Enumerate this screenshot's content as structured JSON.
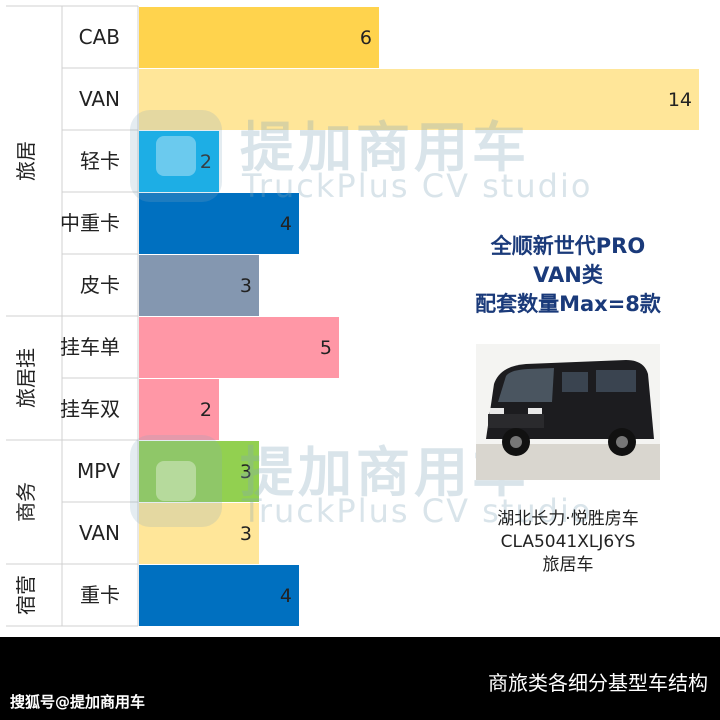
{
  "chart_data": {
    "type": "bar",
    "orientation": "horizontal",
    "groups": [
      {
        "name": "旅居",
        "categories": [
          "CAB",
          "VAN",
          "轻卡",
          "中重卡",
          "皮卡"
        ]
      },
      {
        "name": "旅居挂",
        "categories": [
          "挂车单",
          "挂车双"
        ]
      },
      {
        "name": "商务",
        "categories": [
          "MPV",
          "VAN"
        ]
      },
      {
        "name": "宿营",
        "categories": [
          "重卡"
        ]
      }
    ],
    "categories": [
      "CAB",
      "VAN",
      "轻卡",
      "中重卡",
      "皮卡",
      "挂车单",
      "挂车双",
      "MPV",
      "VAN",
      "重卡"
    ],
    "values": [
      6,
      14,
      2,
      4,
      3,
      5,
      2,
      3,
      3,
      4
    ],
    "bar_colors": [
      "#ffd34d",
      "#ffe699",
      "#00b0f0",
      "#0070c0",
      "#8497b0",
      "#ff97a6",
      "#ff97a6",
      "#92d050",
      "#ffe699",
      "#0070c0"
    ],
    "xlim": [
      0,
      14
    ],
    "title": "商旅类各细分基型车结构",
    "grid": false,
    "legend": "none"
  },
  "watermark": {
    "cn": "提加商用车",
    "en": "TruckPlus CV studio"
  },
  "note": {
    "line1": "全顺新世代PRO",
    "line2": "VAN类",
    "line3": "配套数量Max=8款"
  },
  "caption": {
    "line1": "湖北长力·悦胜房车",
    "line2": "CLA5041XLJ6YS",
    "line3": "旅居车"
  },
  "footer": {
    "title": "商旅类各细分基型车结构",
    "source": "搜狐号@提加商用车"
  }
}
